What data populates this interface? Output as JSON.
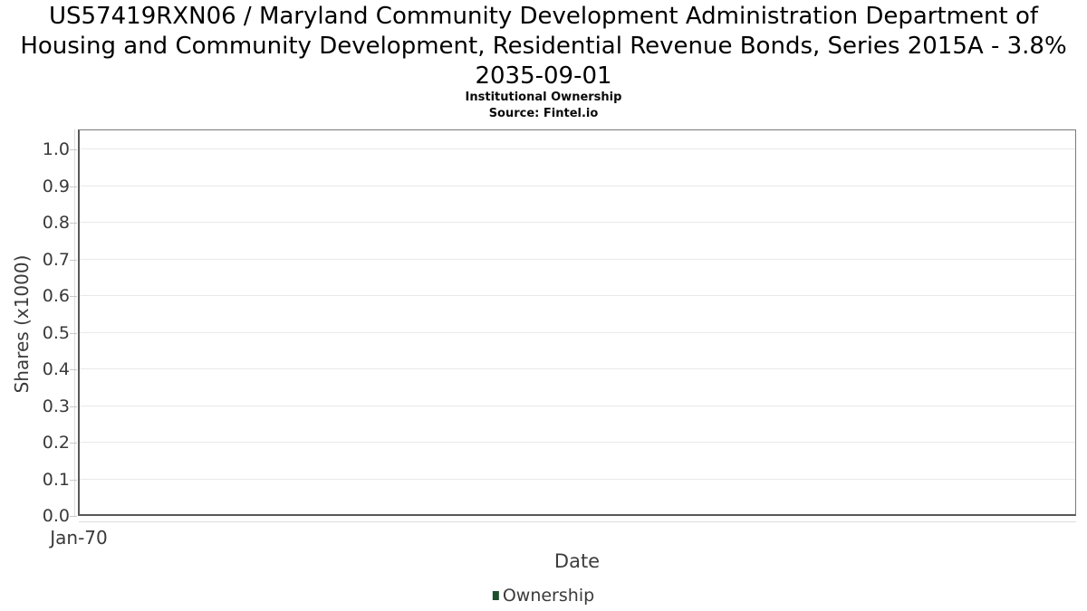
{
  "header": {
    "title": "US57419RXN06 / Maryland Community Development Administration Department of Housing and Community Development, Residential Revenue Bonds, Series 2015A - 3.8% 2035-09-01",
    "subtitle": "Institutional Ownership",
    "source": "Source: Fintel.io"
  },
  "colors": {
    "ownership_green": "#1d4f2c",
    "text_dark": "#3a3a3a",
    "grid": "#e9e9e9",
    "axis_dark": "#585858",
    "axis_light": "#7a7a7a",
    "offset_axis": "#dcdcdc",
    "tick_mark": "#c9c9c9"
  },
  "chart_data": {
    "type": "line",
    "title": "US57419RXN06 / Maryland Community Development Administration Department of Housing and Community Development, Residential Revenue Bonds, Series 2015A - 3.8% 2035-09-01",
    "subtitle": "Institutional Ownership",
    "source": "Source: Fintel.io",
    "xlabel": "Date",
    "ylabel": "Shares (x1000)",
    "x_ticks": [
      "Jan-70"
    ],
    "y_ticks": [
      "0.0",
      "0.1",
      "0.2",
      "0.3",
      "0.4",
      "0.5",
      "0.6",
      "0.7",
      "0.8",
      "0.9",
      "1.0"
    ],
    "ylim": [
      0.0,
      1.05
    ],
    "grid": true,
    "legend": {
      "position": "bottom-center",
      "entries": [
        {
          "label": "Ownership",
          "color": "#1d4f2c"
        }
      ]
    },
    "series": [
      {
        "name": "Ownership",
        "x": [],
        "values": []
      }
    ]
  }
}
